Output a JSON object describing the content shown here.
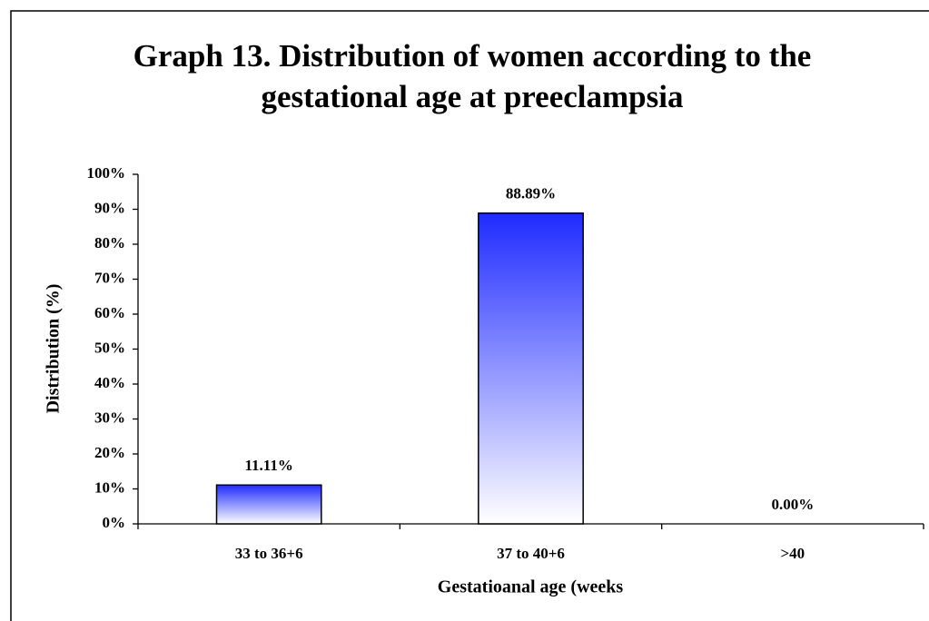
{
  "chart_data": {
    "type": "bar",
    "title": [
      "Graph 13. Distribution of women according to the",
      "gestational age at preeclampsia"
    ],
    "xlabel": "Gestatioanal age (weeks",
    "ylabel": "Distribution (%)",
    "categories": [
      "33 to 36+6",
      "37 to 40+6",
      ">40"
    ],
    "values": [
      11.11,
      88.89,
      0
    ],
    "value_labels": [
      "11.11%",
      "88.89%",
      "0.00%"
    ],
    "color": "#1f2bff",
    "ylim": [
      0,
      100
    ],
    "yticks": [
      {
        "value": 0,
        "label": "0%"
      },
      {
        "value": 10,
        "label": "10%"
      },
      {
        "value": 20,
        "label": "20%"
      },
      {
        "value": 30,
        "label": "30%"
      },
      {
        "value": 40,
        "label": "40%"
      },
      {
        "value": 50,
        "label": "50%"
      },
      {
        "value": 60,
        "label": "60%"
      },
      {
        "value": 70,
        "label": "70%"
      },
      {
        "value": 80,
        "label": "80%"
      },
      {
        "value": 90,
        "label": "90%"
      },
      {
        "value": 100,
        "label": "100%"
      }
    ],
    "grid": false
  }
}
